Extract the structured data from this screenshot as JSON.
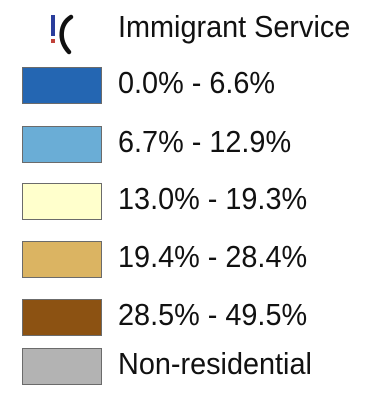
{
  "legend": {
    "marker": {
      "icon": "immigrant-service-marker-icon",
      "label": "Immigrant Service",
      "colors": {
        "stem": "#2a3d9c",
        "dot": "#c0413a",
        "bracket": "#111111"
      }
    },
    "classes": [
      {
        "label": "0.0% - 6.6%",
        "color": "#2466b2"
      },
      {
        "label": "6.7% - 12.9%",
        "color": "#6aadd6"
      },
      {
        "label": "13.0% - 19.3%",
        "color": "#ffffcc"
      },
      {
        "label": "19.4% - 28.4%",
        "color": "#dbb462"
      },
      {
        "label": "28.5% - 49.5%",
        "color": "#8c5212"
      },
      {
        "label": "Non-residential",
        "color": "#b3b3b3"
      }
    ]
  }
}
